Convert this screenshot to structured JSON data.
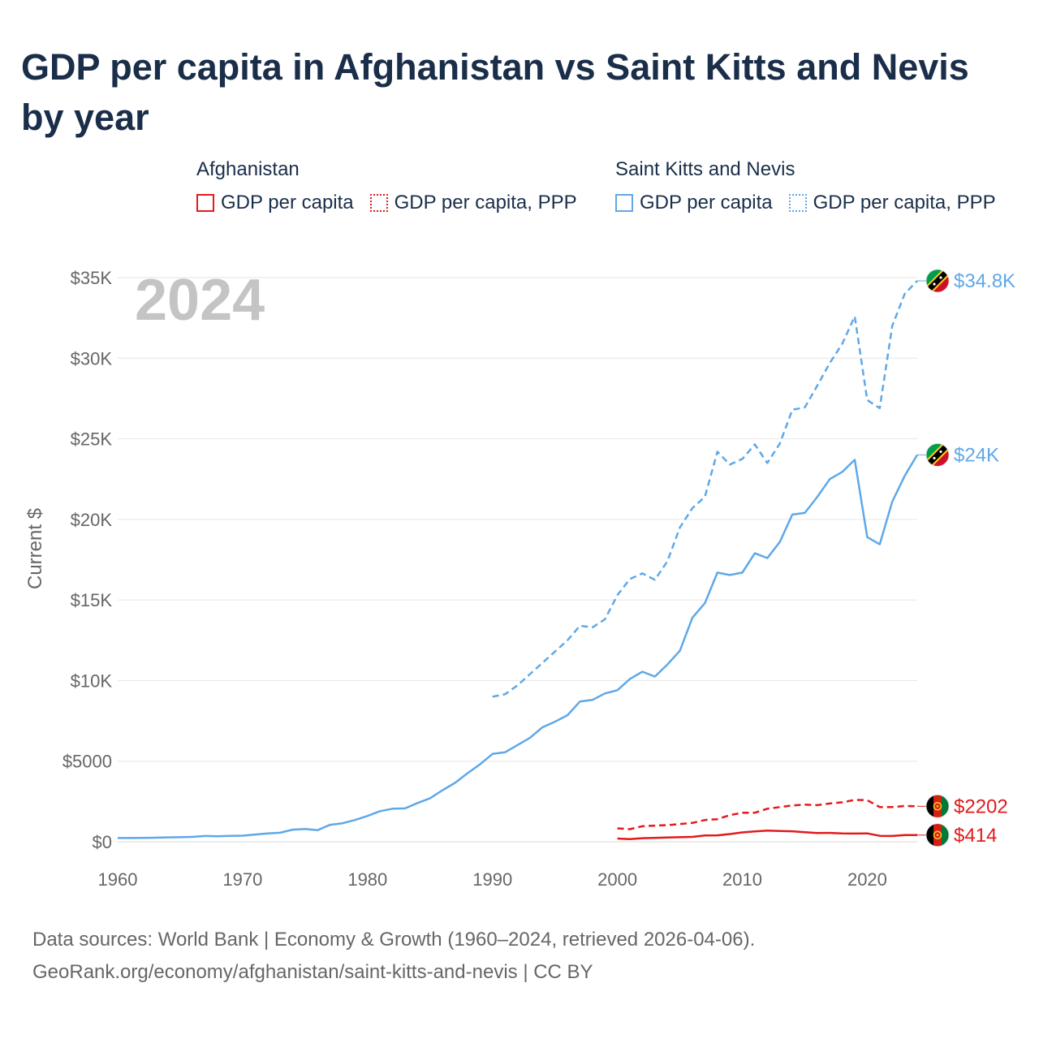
{
  "title": "GDP per capita in Afghanistan vs Saint Kitts and Nevis by year",
  "legend": {
    "groups": [
      {
        "name": "Afghanistan",
        "items": [
          {
            "label": "GDP per capita",
            "color": "#e31a1c",
            "style": "solid"
          },
          {
            "label": "GDP per capita, PPP",
            "color": "#e31a1c",
            "style": "dotted"
          }
        ]
      },
      {
        "name": "Saint Kitts and Nevis",
        "items": [
          {
            "label": "GDP per capita",
            "color": "#5fa8e8",
            "style": "solid"
          },
          {
            "label": "GDP per capita, PPP",
            "color": "#5fa8e8",
            "style": "dotted"
          }
        ]
      }
    ]
  },
  "year_label": "2024",
  "source": {
    "line1": "Data sources: World Bank | Economy & Growth (1960–2024, retrieved 2026-04-06).",
    "line2": "GeoRank.org/economy/afghanistan/saint-kitts-and-nevis | CC BY"
  },
  "chart_data": {
    "type": "line",
    "title": "GDP per capita in Afghanistan vs Saint Kitts and Nevis by year",
    "xlabel": "",
    "ylabel": "Current $",
    "xlim": [
      1960,
      2024
    ],
    "ylim": [
      0,
      35000
    ],
    "xticks": [
      {
        "value": 1960,
        "label": "1960"
      },
      {
        "value": 1970,
        "label": "1970"
      },
      {
        "value": 1980,
        "label": "1980"
      },
      {
        "value": 1990,
        "label": "1990"
      },
      {
        "value": 2000,
        "label": "2000"
      },
      {
        "value": 2010,
        "label": "2010"
      },
      {
        "value": 2020,
        "label": "2020"
      }
    ],
    "yticks": [
      {
        "value": 0,
        "label": "$0"
      },
      {
        "value": 5000,
        "label": "$5000"
      },
      {
        "value": 10000,
        "label": "$10K"
      },
      {
        "value": 15000,
        "label": "$15K"
      },
      {
        "value": 20000,
        "label": "$20K"
      },
      {
        "value": 25000,
        "label": "$25K"
      },
      {
        "value": 30000,
        "label": "$30K"
      },
      {
        "value": 35000,
        "label": "$35K"
      }
    ],
    "grid": true,
    "series": [
      {
        "name": "Saint Kitts and Nevis GDP per capita, PPP",
        "color": "#5fa8e8",
        "dash": "dashed",
        "end_label": "$34.8K",
        "flag": "kn",
        "points": [
          [
            1990,
            9000
          ],
          [
            1991,
            9150
          ],
          [
            1992,
            9700
          ],
          [
            1993,
            10400
          ],
          [
            1994,
            11100
          ],
          [
            1995,
            11800
          ],
          [
            1996,
            12500
          ],
          [
            1997,
            13400
          ],
          [
            1998,
            13300
          ],
          [
            1999,
            13800
          ],
          [
            2000,
            15300
          ],
          [
            2001,
            16300
          ],
          [
            2002,
            16650
          ],
          [
            2003,
            16250
          ],
          [
            2004,
            17400
          ],
          [
            2005,
            19500
          ],
          [
            2006,
            20700
          ],
          [
            2007,
            21400
          ],
          [
            2008,
            24200
          ],
          [
            2009,
            23400
          ],
          [
            2010,
            23750
          ],
          [
            2011,
            24650
          ],
          [
            2012,
            23500
          ],
          [
            2013,
            24700
          ],
          [
            2014,
            26800
          ],
          [
            2015,
            26950
          ],
          [
            2016,
            28300
          ],
          [
            2017,
            29700
          ],
          [
            2018,
            30900
          ],
          [
            2019,
            32600
          ],
          [
            2020,
            27400
          ],
          [
            2021,
            26900
          ],
          [
            2022,
            32000
          ],
          [
            2023,
            34000
          ],
          [
            2024,
            34800
          ]
        ]
      },
      {
        "name": "Saint Kitts and Nevis GDP per capita",
        "color": "#5fa8e8",
        "dash": "solid",
        "end_label": "$24K",
        "flag": "kn",
        "points": [
          [
            1960,
            230
          ],
          [
            1961,
            230
          ],
          [
            1962,
            240
          ],
          [
            1963,
            250
          ],
          [
            1964,
            270
          ],
          [
            1965,
            280
          ],
          [
            1966,
            300
          ],
          [
            1967,
            360
          ],
          [
            1968,
            340
          ],
          [
            1969,
            370
          ],
          [
            1970,
            380
          ],
          [
            1971,
            450
          ],
          [
            1972,
            520
          ],
          [
            1973,
            560
          ],
          [
            1974,
            750
          ],
          [
            1975,
            790
          ],
          [
            1976,
            720
          ],
          [
            1977,
            1050
          ],
          [
            1978,
            1150
          ],
          [
            1979,
            1350
          ],
          [
            1980,
            1600
          ],
          [
            1981,
            1900
          ],
          [
            1982,
            2050
          ],
          [
            1983,
            2070
          ],
          [
            1984,
            2400
          ],
          [
            1985,
            2700
          ],
          [
            1986,
            3200
          ],
          [
            1987,
            3650
          ],
          [
            1988,
            4250
          ],
          [
            1989,
            4800
          ],
          [
            1990,
            5450
          ],
          [
            1991,
            5550
          ],
          [
            1992,
            6000
          ],
          [
            1993,
            6450
          ],
          [
            1994,
            7100
          ],
          [
            1995,
            7450
          ],
          [
            1996,
            7850
          ],
          [
            1997,
            8700
          ],
          [
            1998,
            8800
          ],
          [
            1999,
            9200
          ],
          [
            2000,
            9400
          ],
          [
            2001,
            10100
          ],
          [
            2002,
            10550
          ],
          [
            2003,
            10250
          ],
          [
            2004,
            11000
          ],
          [
            2005,
            11850
          ],
          [
            2006,
            13900
          ],
          [
            2007,
            14800
          ],
          [
            2008,
            16700
          ],
          [
            2009,
            16550
          ],
          [
            2010,
            16700
          ],
          [
            2011,
            17900
          ],
          [
            2012,
            17600
          ],
          [
            2013,
            18600
          ],
          [
            2014,
            20300
          ],
          [
            2015,
            20400
          ],
          [
            2016,
            21400
          ],
          [
            2017,
            22500
          ],
          [
            2018,
            22950
          ],
          [
            2019,
            23700
          ],
          [
            2020,
            18900
          ],
          [
            2021,
            18450
          ],
          [
            2022,
            21100
          ],
          [
            2023,
            22700
          ],
          [
            2024,
            24000
          ]
        ]
      },
      {
        "name": "Afghanistan GDP per capita, PPP",
        "color": "#e31a1c",
        "dash": "dashed",
        "end_label": "$2202",
        "flag": "af",
        "points": [
          [
            2000,
            830
          ],
          [
            2001,
            780
          ],
          [
            2002,
            960
          ],
          [
            2003,
            1000
          ],
          [
            2004,
            1030
          ],
          [
            2005,
            1100
          ],
          [
            2006,
            1170
          ],
          [
            2007,
            1350
          ],
          [
            2008,
            1400
          ],
          [
            2009,
            1650
          ],
          [
            2010,
            1800
          ],
          [
            2011,
            1800
          ],
          [
            2012,
            2050
          ],
          [
            2013,
            2150
          ],
          [
            2014,
            2250
          ],
          [
            2015,
            2300
          ],
          [
            2016,
            2270
          ],
          [
            2017,
            2370
          ],
          [
            2018,
            2450
          ],
          [
            2019,
            2600
          ],
          [
            2020,
            2580
          ],
          [
            2021,
            2150
          ],
          [
            2022,
            2150
          ],
          [
            2023,
            2220
          ],
          [
            2024,
            2202
          ]
        ]
      },
      {
        "name": "Afghanistan GDP per capita",
        "color": "#e31a1c",
        "dash": "solid",
        "end_label": "$414",
        "flag": "af",
        "points": [
          [
            2000,
            200
          ],
          [
            2001,
            160
          ],
          [
            2002,
            220
          ],
          [
            2003,
            240
          ],
          [
            2004,
            260
          ],
          [
            2005,
            280
          ],
          [
            2006,
            300
          ],
          [
            2007,
            390
          ],
          [
            2008,
            400
          ],
          [
            2009,
            480
          ],
          [
            2010,
            580
          ],
          [
            2011,
            640
          ],
          [
            2012,
            690
          ],
          [
            2013,
            670
          ],
          [
            2014,
            650
          ],
          [
            2015,
            590
          ],
          [
            2016,
            540
          ],
          [
            2017,
            550
          ],
          [
            2018,
            520
          ],
          [
            2019,
            510
          ],
          [
            2020,
            520
          ],
          [
            2021,
            370
          ],
          [
            2022,
            360
          ],
          [
            2023,
            420
          ],
          [
            2024,
            414
          ]
        ]
      }
    ]
  }
}
